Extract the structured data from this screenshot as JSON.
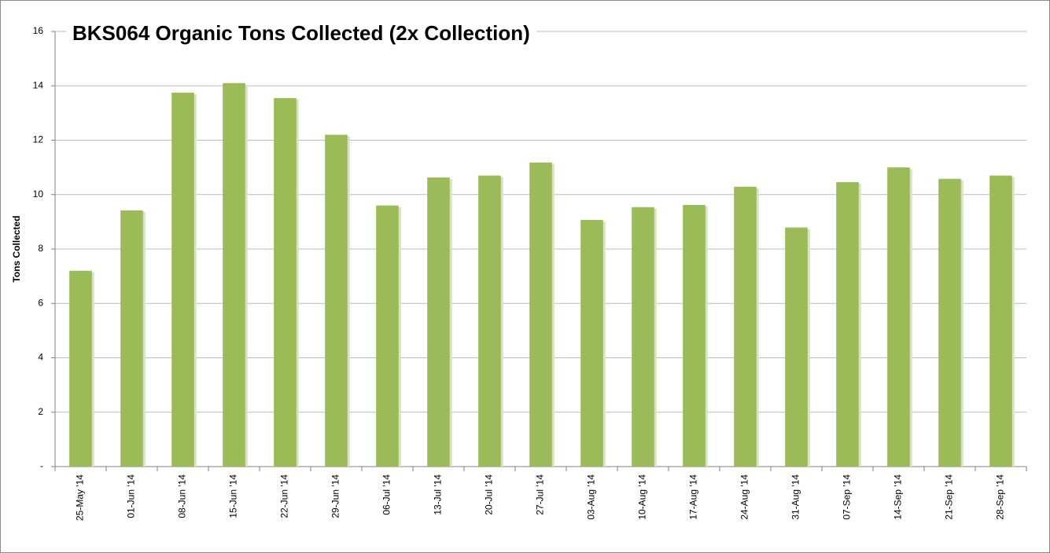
{
  "chart_data": {
    "type": "bar",
    "title": "BKS064 Organic Tons Collected (2x Collection)",
    "y_label": "Tons Collected",
    "categories": [
      "25-May '14",
      "01-Jun '14",
      "08-Jun '14",
      "15-Jun '14",
      "22-Jun '14",
      "29-Jun '14",
      "06-Jul '14",
      "13-Jul '14",
      "20-Jul '14",
      "27-Jul '14",
      "03-Aug '14",
      "10-Aug '14",
      "17-Aug '14",
      "24-Aug '14",
      "31-Aug '14",
      "07-Sep '14",
      "14-Sep '14",
      "21-Sep '14",
      "28-Sep '14"
    ],
    "values": [
      7.2,
      9.42,
      13.75,
      14.1,
      13.55,
      12.2,
      9.6,
      10.63,
      10.7,
      11.18,
      9.07,
      9.54,
      9.62,
      10.29,
      8.79,
      10.46,
      11.0,
      10.58,
      10.7
    ],
    "color": "#9bbb59",
    "ylim": [
      0,
      16
    ],
    "yticks": [
      {
        "value": 0,
        "label": "-"
      },
      2,
      4,
      6,
      8,
      10,
      12,
      14,
      16
    ],
    "grid": true
  }
}
